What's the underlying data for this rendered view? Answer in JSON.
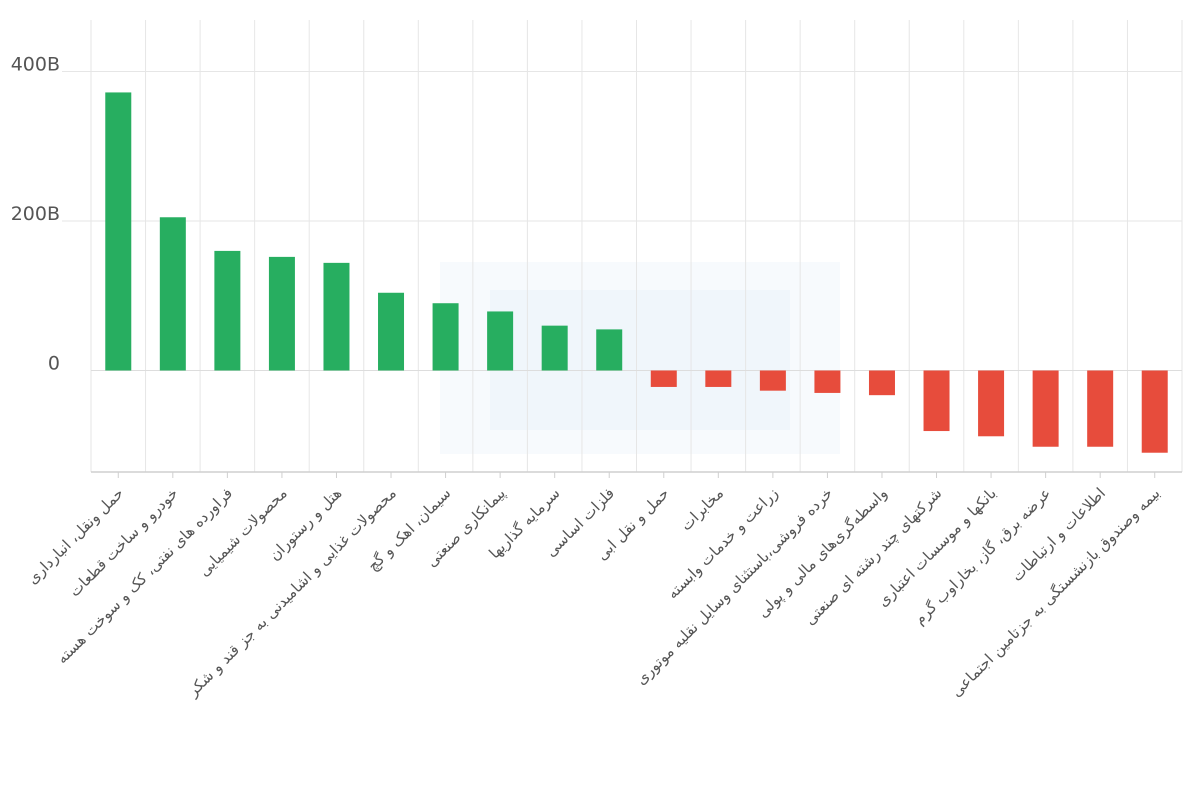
{
  "chart_data": {
    "type": "bar",
    "title": "",
    "xlabel": "",
    "ylabel": "",
    "ylim": [
      -138,
      470
    ],
    "yticks": [
      {
        "value": 0,
        "label": "0"
      },
      {
        "value": 200,
        "label": "200B"
      },
      {
        "value": 400,
        "label": "400B"
      }
    ],
    "grid": {
      "vertical": true
    },
    "colors": {
      "positive": "#27ae60",
      "negative": "#e74c3c"
    },
    "categories": [
      "حمل ونقل، انبارداری",
      "خودرو و ساخت قطعات",
      "فراورده های نفتی، کک و سوخت هسته",
      "محصولات شیمیایی",
      "هتل و رستوران",
      "محصولات غذایی و اشامیدنی به جز قند و شکر",
      "سیمان، اهک و گچ",
      "پیمانکاری صنعتی",
      "سرمایه گذاریها",
      "فلزات اساسی",
      "حمل و نقل ابی",
      "مخابرات",
      "زراعت و خدمات وابسته",
      "خرده فروشی،باستثنای وسایل نقلیه موتوری",
      "واسطه‌گری‌های مالی و پولی",
      "شرکتهای چند رشته ای صنعتی",
      "بانکها و موسسات اعتباری",
      "عرضه برق، گاز، بخاراوب گرم",
      "اطلاعات و ارتباطات",
      "بیمه وصندوق بازنشستگی به جزتامین اجتماعی"
    ],
    "values": [
      372,
      205,
      160,
      152,
      144,
      104,
      90,
      79,
      60,
      55,
      -22,
      -22,
      -27,
      -30,
      -33,
      -81,
      -88,
      -102,
      -102,
      -110
    ]
  }
}
